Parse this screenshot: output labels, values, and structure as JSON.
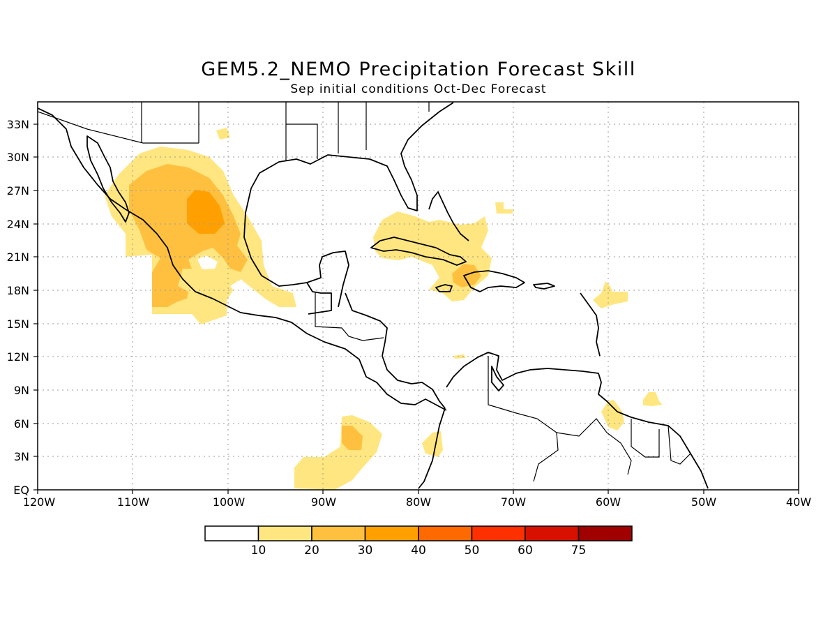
{
  "title": "GEM5.2_NEMO Precipitation Forecast Skill",
  "subtitle": "Sep initial conditions  Oct-Dec Forecast",
  "axes": {
    "x_ticks": [
      "120W",
      "110W",
      "100W",
      "90W",
      "80W",
      "70W",
      "60W",
      "50W",
      "40W"
    ],
    "y_ticks": [
      "EQ",
      "3N",
      "6N",
      "9N",
      "12N",
      "15N",
      "18N",
      "21N",
      "24N",
      "27N",
      "30N",
      "33N"
    ]
  },
  "colorbar": {
    "labels": [
      "10",
      "20",
      "30",
      "40",
      "50",
      "60",
      "75"
    ],
    "colors": [
      "#ffffff",
      "#ffe680",
      "#ffc040",
      "#ffa000",
      "#ff6a00",
      "#ff3000",
      "#d81000",
      "#a00000"
    ]
  }
}
